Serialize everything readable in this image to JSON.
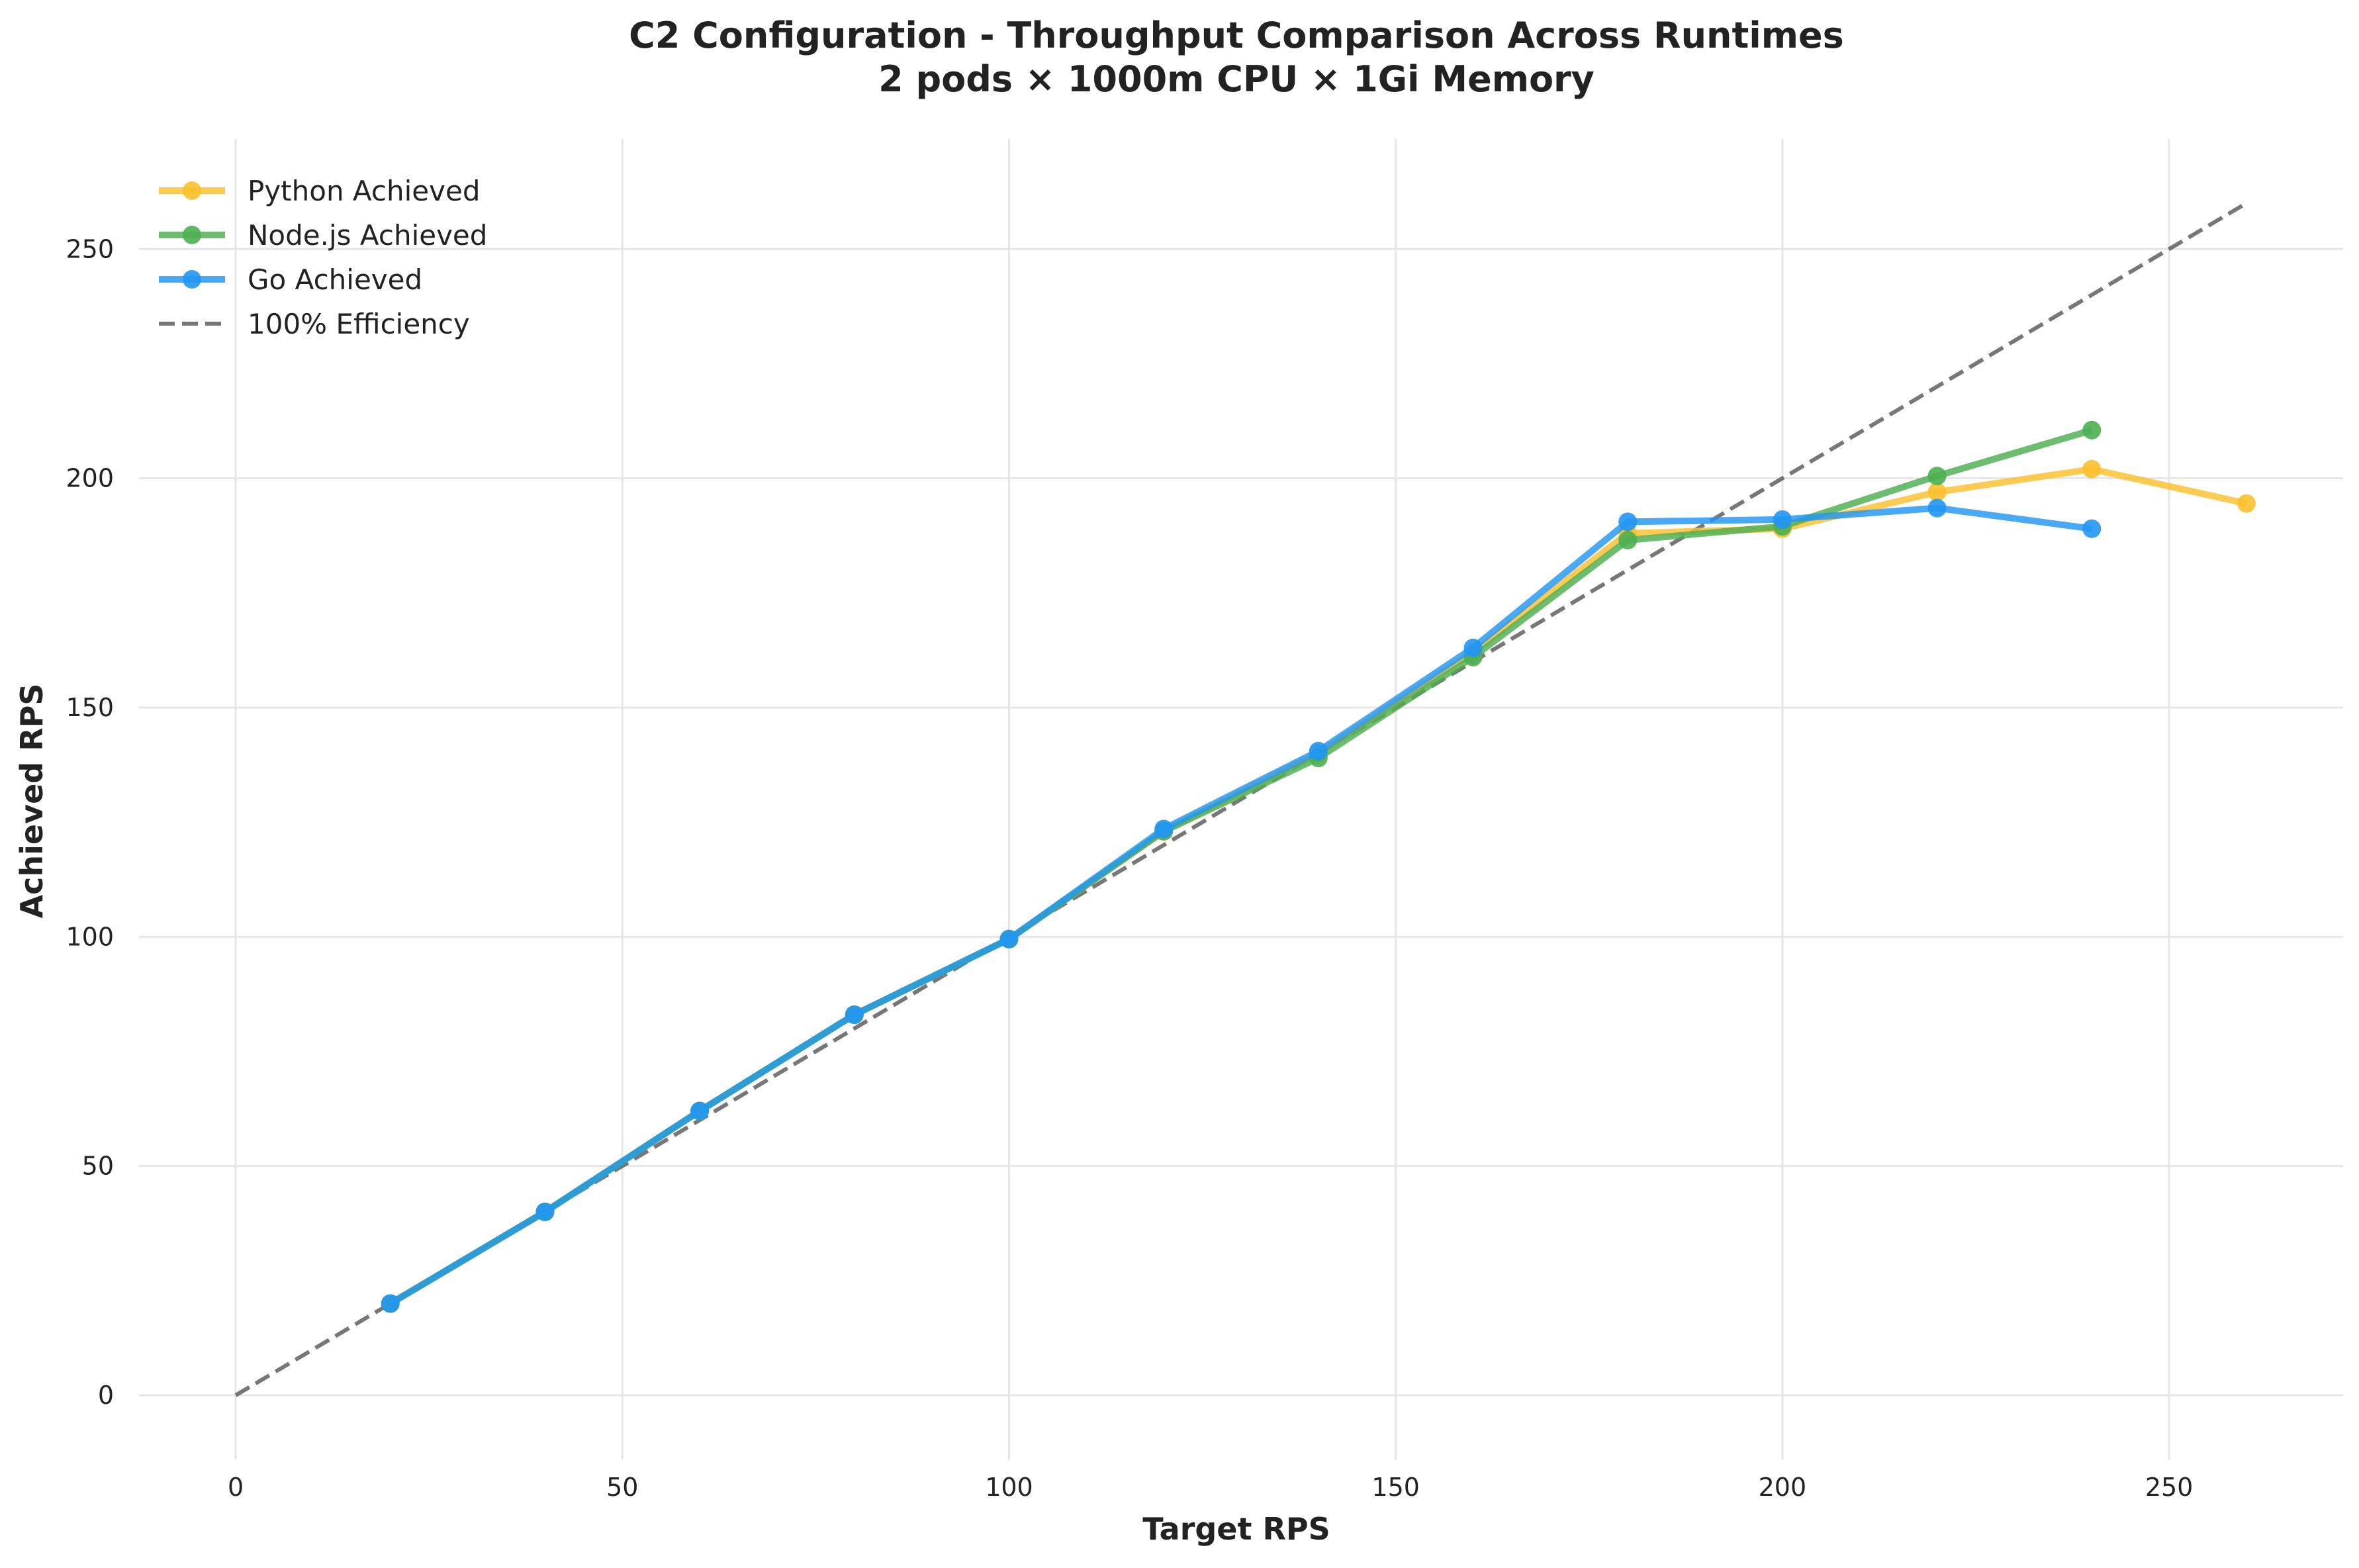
{
  "chart_data": {
    "type": "line",
    "title": "C2 Configuration - Throughput Comparison Across Runtimes",
    "subtitle": "2 pods × 1000m CPU × 1Gi Memory",
    "xlabel": "Target RPS",
    "ylabel": "Achieved RPS",
    "xlim": [
      -12.5,
      272.5
    ],
    "ylim": [
      -14,
      274
    ],
    "xticks": [
      0,
      50,
      100,
      150,
      200,
      250
    ],
    "yticks": [
      0,
      50,
      100,
      150,
      200,
      250
    ],
    "grid": true,
    "legend_position": "top-left",
    "series": [
      {
        "name": "Python Achieved",
        "color": "#fbc02d",
        "x": [
          20,
          40,
          60,
          80,
          100,
          120,
          140,
          160,
          180,
          200,
          220,
          240,
          260
        ],
        "y": [
          20,
          40,
          62,
          83,
          99.5,
          123,
          140,
          162,
          188,
          189,
          197,
          202,
          194.5
        ]
      },
      {
        "name": "Node.js Achieved",
        "color": "#4caf50",
        "x": [
          20,
          40,
          60,
          80,
          100,
          120,
          140,
          160,
          180,
          200,
          220,
          240
        ],
        "y": [
          20,
          40,
          62,
          83,
          99.5,
          123,
          139,
          161,
          186.5,
          189.5,
          200.5,
          210.5
        ]
      },
      {
        "name": "Go Achieved",
        "color": "#2196f3",
        "x": [
          20,
          40,
          60,
          80,
          100,
          120,
          140,
          160,
          180,
          200,
          220,
          240
        ],
        "y": [
          20,
          40,
          62,
          83,
          99.5,
          123.5,
          140.5,
          163,
          190.5,
          191,
          193.5,
          189
        ]
      },
      {
        "name": "100% Efficiency",
        "color": "#555555",
        "dashed": true,
        "x": [
          0,
          260
        ],
        "y": [
          0,
          260
        ]
      }
    ]
  }
}
